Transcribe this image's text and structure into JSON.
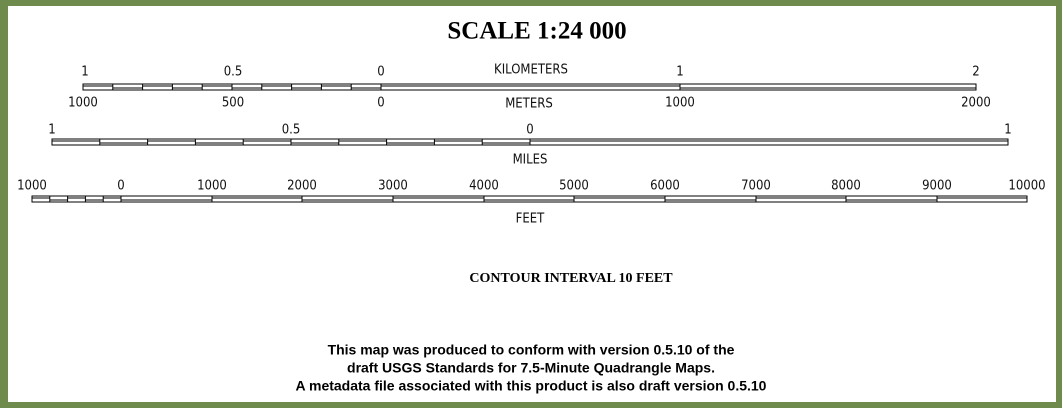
{
  "title": "SCALE 1:24 000",
  "kilometers": {
    "unit": "KILOMETERS",
    "labels": [
      "1",
      "0.5",
      "0",
      "1",
      "2"
    ]
  },
  "meters": {
    "unit": "METERS",
    "labels": [
      "1000",
      "500",
      "0",
      "1000",
      "2000"
    ]
  },
  "miles": {
    "unit": "MILES",
    "labels": [
      "1",
      "0.5",
      "0",
      "1"
    ]
  },
  "feet": {
    "unit": "FEET",
    "labels": [
      "1000",
      "0",
      "1000",
      "2000",
      "3000",
      "4000",
      "5000",
      "6000",
      "7000",
      "8000",
      "9000",
      "10000"
    ]
  },
  "contour": "CONTOUR INTERVAL 10 FEET",
  "notes": [
    "This map was produced to conform with version 0.5.10 of the",
    "draft USGS Standards for 7.5-Minute Quadrangle Maps.",
    "A metadata file associated with this product is also draft version 0.5.10"
  ]
}
